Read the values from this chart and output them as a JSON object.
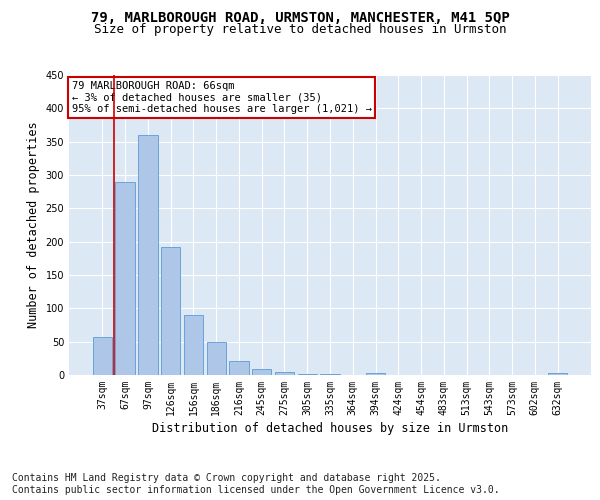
{
  "title_line1": "79, MARLBOROUGH ROAD, URMSTON, MANCHESTER, M41 5QP",
  "title_line2": "Size of property relative to detached houses in Urmston",
  "xlabel": "Distribution of detached houses by size in Urmston",
  "ylabel": "Number of detached properties",
  "categories": [
    "37sqm",
    "67sqm",
    "97sqm",
    "126sqm",
    "156sqm",
    "186sqm",
    "216sqm",
    "245sqm",
    "275sqm",
    "305sqm",
    "335sqm",
    "364sqm",
    "394sqm",
    "424sqm",
    "454sqm",
    "483sqm",
    "513sqm",
    "543sqm",
    "573sqm",
    "602sqm",
    "632sqm"
  ],
  "values": [
    57,
    290,
    360,
    192,
    90,
    49,
    21,
    9,
    4,
    2,
    1,
    0,
    3,
    0,
    0,
    0,
    0,
    0,
    0,
    0,
    3
  ],
  "bar_color": "#aec6e8",
  "bar_edgecolor": "#5b9bd5",
  "highlight_color": "#cc0000",
  "annotation_text": "79 MARLBOROUGH ROAD: 66sqm\n← 3% of detached houses are smaller (35)\n95% of semi-detached houses are larger (1,021) →",
  "annotation_box_color": "#ffffff",
  "annotation_box_edgecolor": "#cc0000",
  "ylim": [
    0,
    450
  ],
  "yticks": [
    0,
    50,
    100,
    150,
    200,
    250,
    300,
    350,
    400,
    450
  ],
  "axes_bg": "#dce9f5",
  "fig_bg": "#ffffff",
  "footer_text": "Contains HM Land Registry data © Crown copyright and database right 2025.\nContains public sector information licensed under the Open Government Licence v3.0.",
  "title_fontsize": 10,
  "subtitle_fontsize": 9,
  "axis_label_fontsize": 8.5,
  "tick_fontsize": 7,
  "annotation_fontsize": 7.5,
  "footer_fontsize": 7
}
